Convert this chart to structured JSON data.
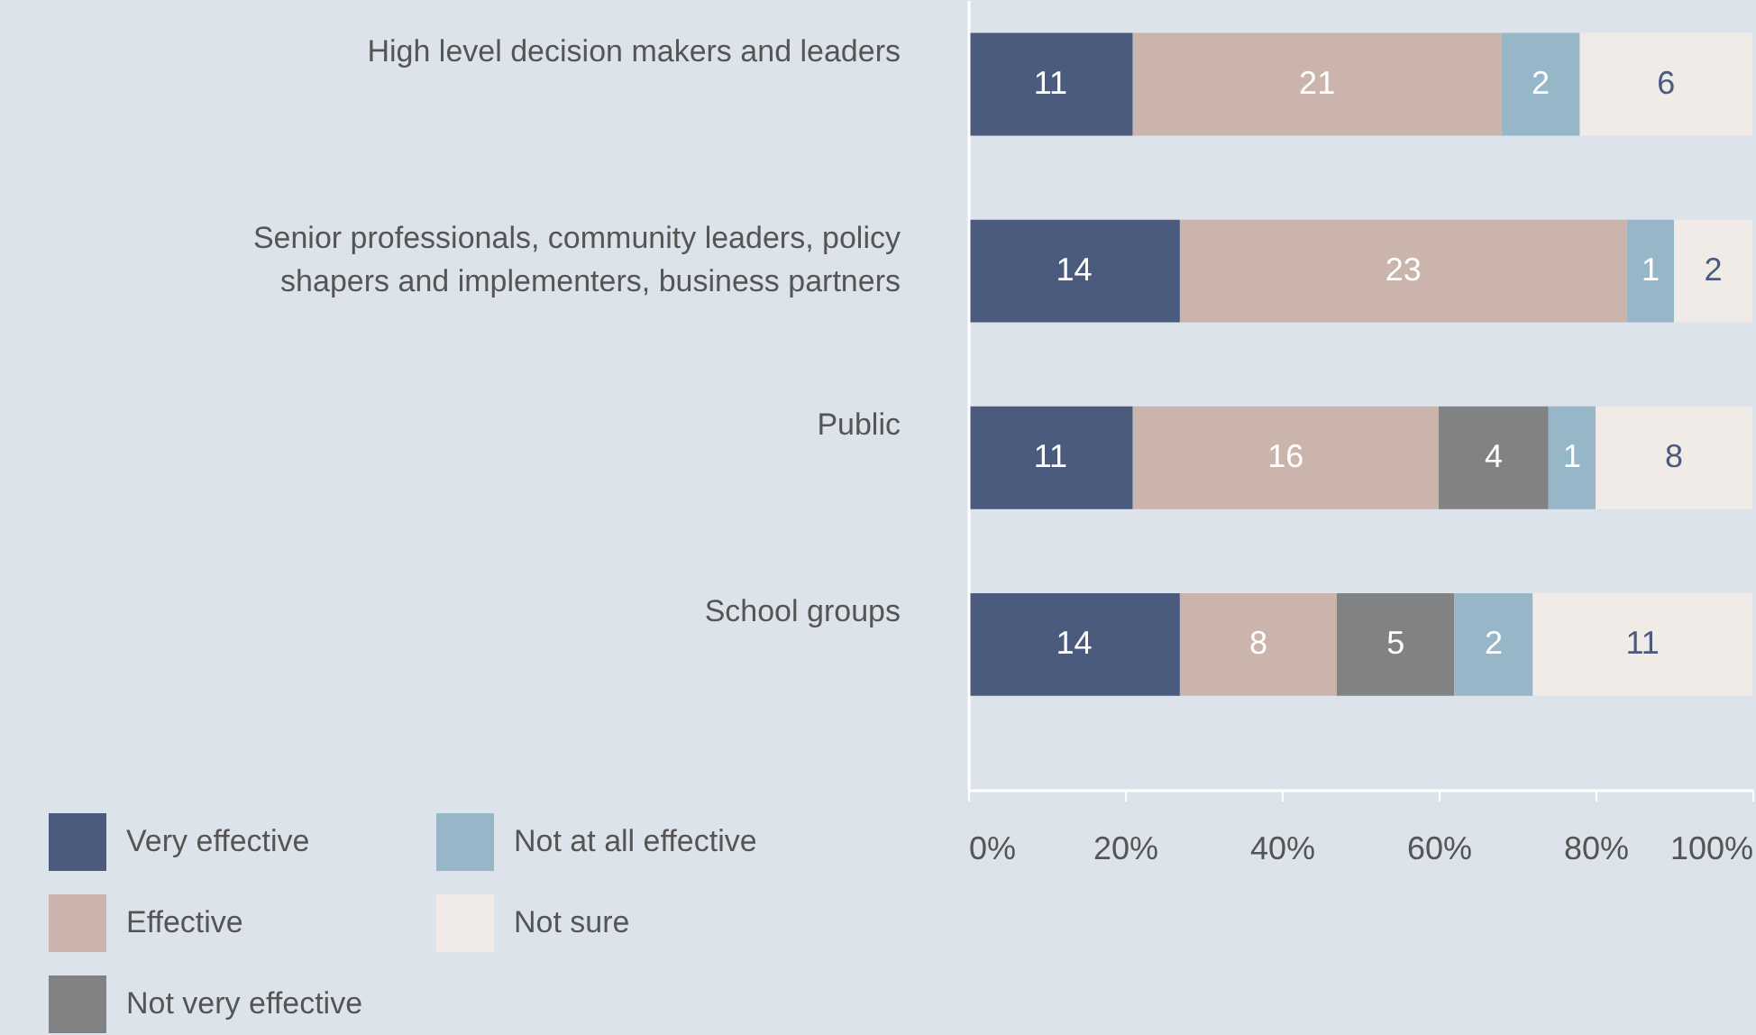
{
  "chart_data": {
    "type": "bar",
    "orientation": "horizontal",
    "stacked": true,
    "categories": [
      "High level decision makers and leaders",
      "Senior professionals, community leaders, policy shapers and implementers, business partners",
      "Public",
      "School groups"
    ],
    "series": [
      {
        "name": "Very effective",
        "color": "#4a5b7e",
        "values": [
          21,
          27,
          21,
          27
        ]
      },
      {
        "name": "Effective",
        "color": "#cbb4ab",
        "values": [
          47,
          57,
          39,
          20
        ]
      },
      {
        "name": "Not very effective",
        "color": "#818284",
        "values": [
          null,
          null,
          14,
          15
        ]
      },
      {
        "name": "Not at all effective",
        "color": "#97b6c8",
        "values": [
          10,
          6,
          6,
          10
        ]
      },
      {
        "name": "Not sure",
        "color": "#f0ebe7",
        "values": [
          22,
          10,
          20,
          28
        ]
      }
    ],
    "xlim": [
      0,
      100
    ],
    "xticks": [
      {
        "value": 0,
        "label": "0%"
      },
      {
        "value": 20,
        "label": "20%"
      },
      {
        "value": 40,
        "label": "40%"
      },
      {
        "value": 60,
        "label": "60%"
      },
      {
        "value": 80,
        "label": "80%"
      },
      {
        "value": 100,
        "label": "100%"
      }
    ],
    "annotations": [
      {
        "text": "11",
        "x": 10.5,
        "y": "High level decision makers and leaders"
      },
      {
        "text": "21",
        "x": 44.5,
        "y": "High level decision makers and leaders"
      },
      {
        "text": "2",
        "x": 73,
        "y": "High level decision makers and leaders"
      },
      {
        "text": "6",
        "x": 89,
        "y": "High level decision makers and leaders"
      },
      {
        "text": "14",
        "x": 13.5,
        "y": "Senior professionals, community leaders, policy shapers and implementers, business partners"
      },
      {
        "text": "23",
        "x": 55.5,
        "y": "Senior professionals, community leaders, policy shapers and implementers, business partners"
      },
      {
        "text": "1",
        "x": 87,
        "y": "Senior professionals, community leaders, policy shapers and implementers, business partners"
      },
      {
        "text": "2",
        "x": 95,
        "y": "Senior professionals, community leaders, policy shapers and implementers, business partners"
      },
      {
        "text": "11",
        "x": 10.5,
        "y": "Public"
      },
      {
        "text": "16",
        "x": 40.5,
        "y": "Public"
      },
      {
        "text": "4",
        "x": 67,
        "y": "Public"
      },
      {
        "text": "1",
        "x": 77,
        "y": "Public"
      },
      {
        "text": "8",
        "x": 90,
        "y": "Public"
      },
      {
        "text": "14",
        "x": 13.5,
        "y": "School groups"
      },
      {
        "text": "8",
        "x": 37,
        "y": "School groups"
      },
      {
        "text": "5",
        "x": 54.5,
        "y": "School groups"
      },
      {
        "text": "2",
        "x": 67,
        "y": "School groups"
      },
      {
        "text": "11",
        "x": 86,
        "y": "School groups"
      }
    ],
    "legend": "bottom left",
    "grid": false
  }
}
